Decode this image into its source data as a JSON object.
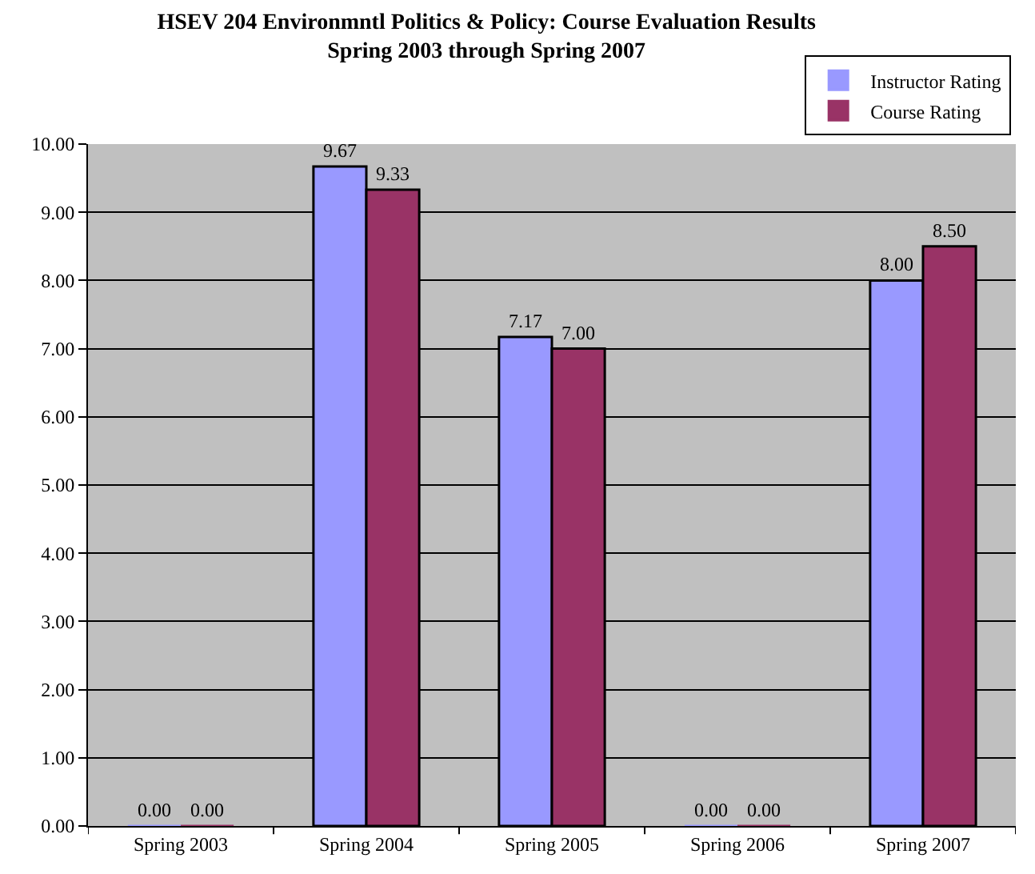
{
  "chart_data": {
    "type": "bar",
    "title": "HSEV 204 Environmntl Politics & Policy: Course Evaluation Results\nSpring 2003 through Spring 2007",
    "categories": [
      "Spring 2003",
      "Spring 2004",
      "Spring 2005",
      "Spring 2006",
      "Spring 2007"
    ],
    "series": [
      {
        "name": "Instructor Rating",
        "color": "#9999ff",
        "values": [
          0,
          9.67,
          7.17,
          0,
          8.0
        ],
        "value_labels": [
          "0.00",
          "9.67",
          "7.17",
          "0.00",
          "8.00"
        ]
      },
      {
        "name": "Course Rating",
        "color": "#993366",
        "values": [
          0,
          9.33,
          7.0,
          0,
          8.5
        ],
        "value_labels": [
          "0.00",
          "9.33",
          "7.00",
          "0.00",
          "8.50"
        ]
      }
    ],
    "ylim": [
      0,
      10
    ],
    "yticks": [
      {
        "value": 0,
        "label": "0.00"
      },
      {
        "value": 1,
        "label": "1.00"
      },
      {
        "value": 2,
        "label": "2.00"
      },
      {
        "value": 3,
        "label": "3.00"
      },
      {
        "value": 4,
        "label": "4.00"
      },
      {
        "value": 5,
        "label": "5.00"
      },
      {
        "value": 6,
        "label": "6.00"
      },
      {
        "value": 7,
        "label": "7.00"
      },
      {
        "value": 8,
        "label": "8.00"
      },
      {
        "value": 9,
        "label": "9.00"
      },
      {
        "value": 10,
        "label": "10.00"
      }
    ],
    "grid": "y",
    "legend": "top right"
  }
}
